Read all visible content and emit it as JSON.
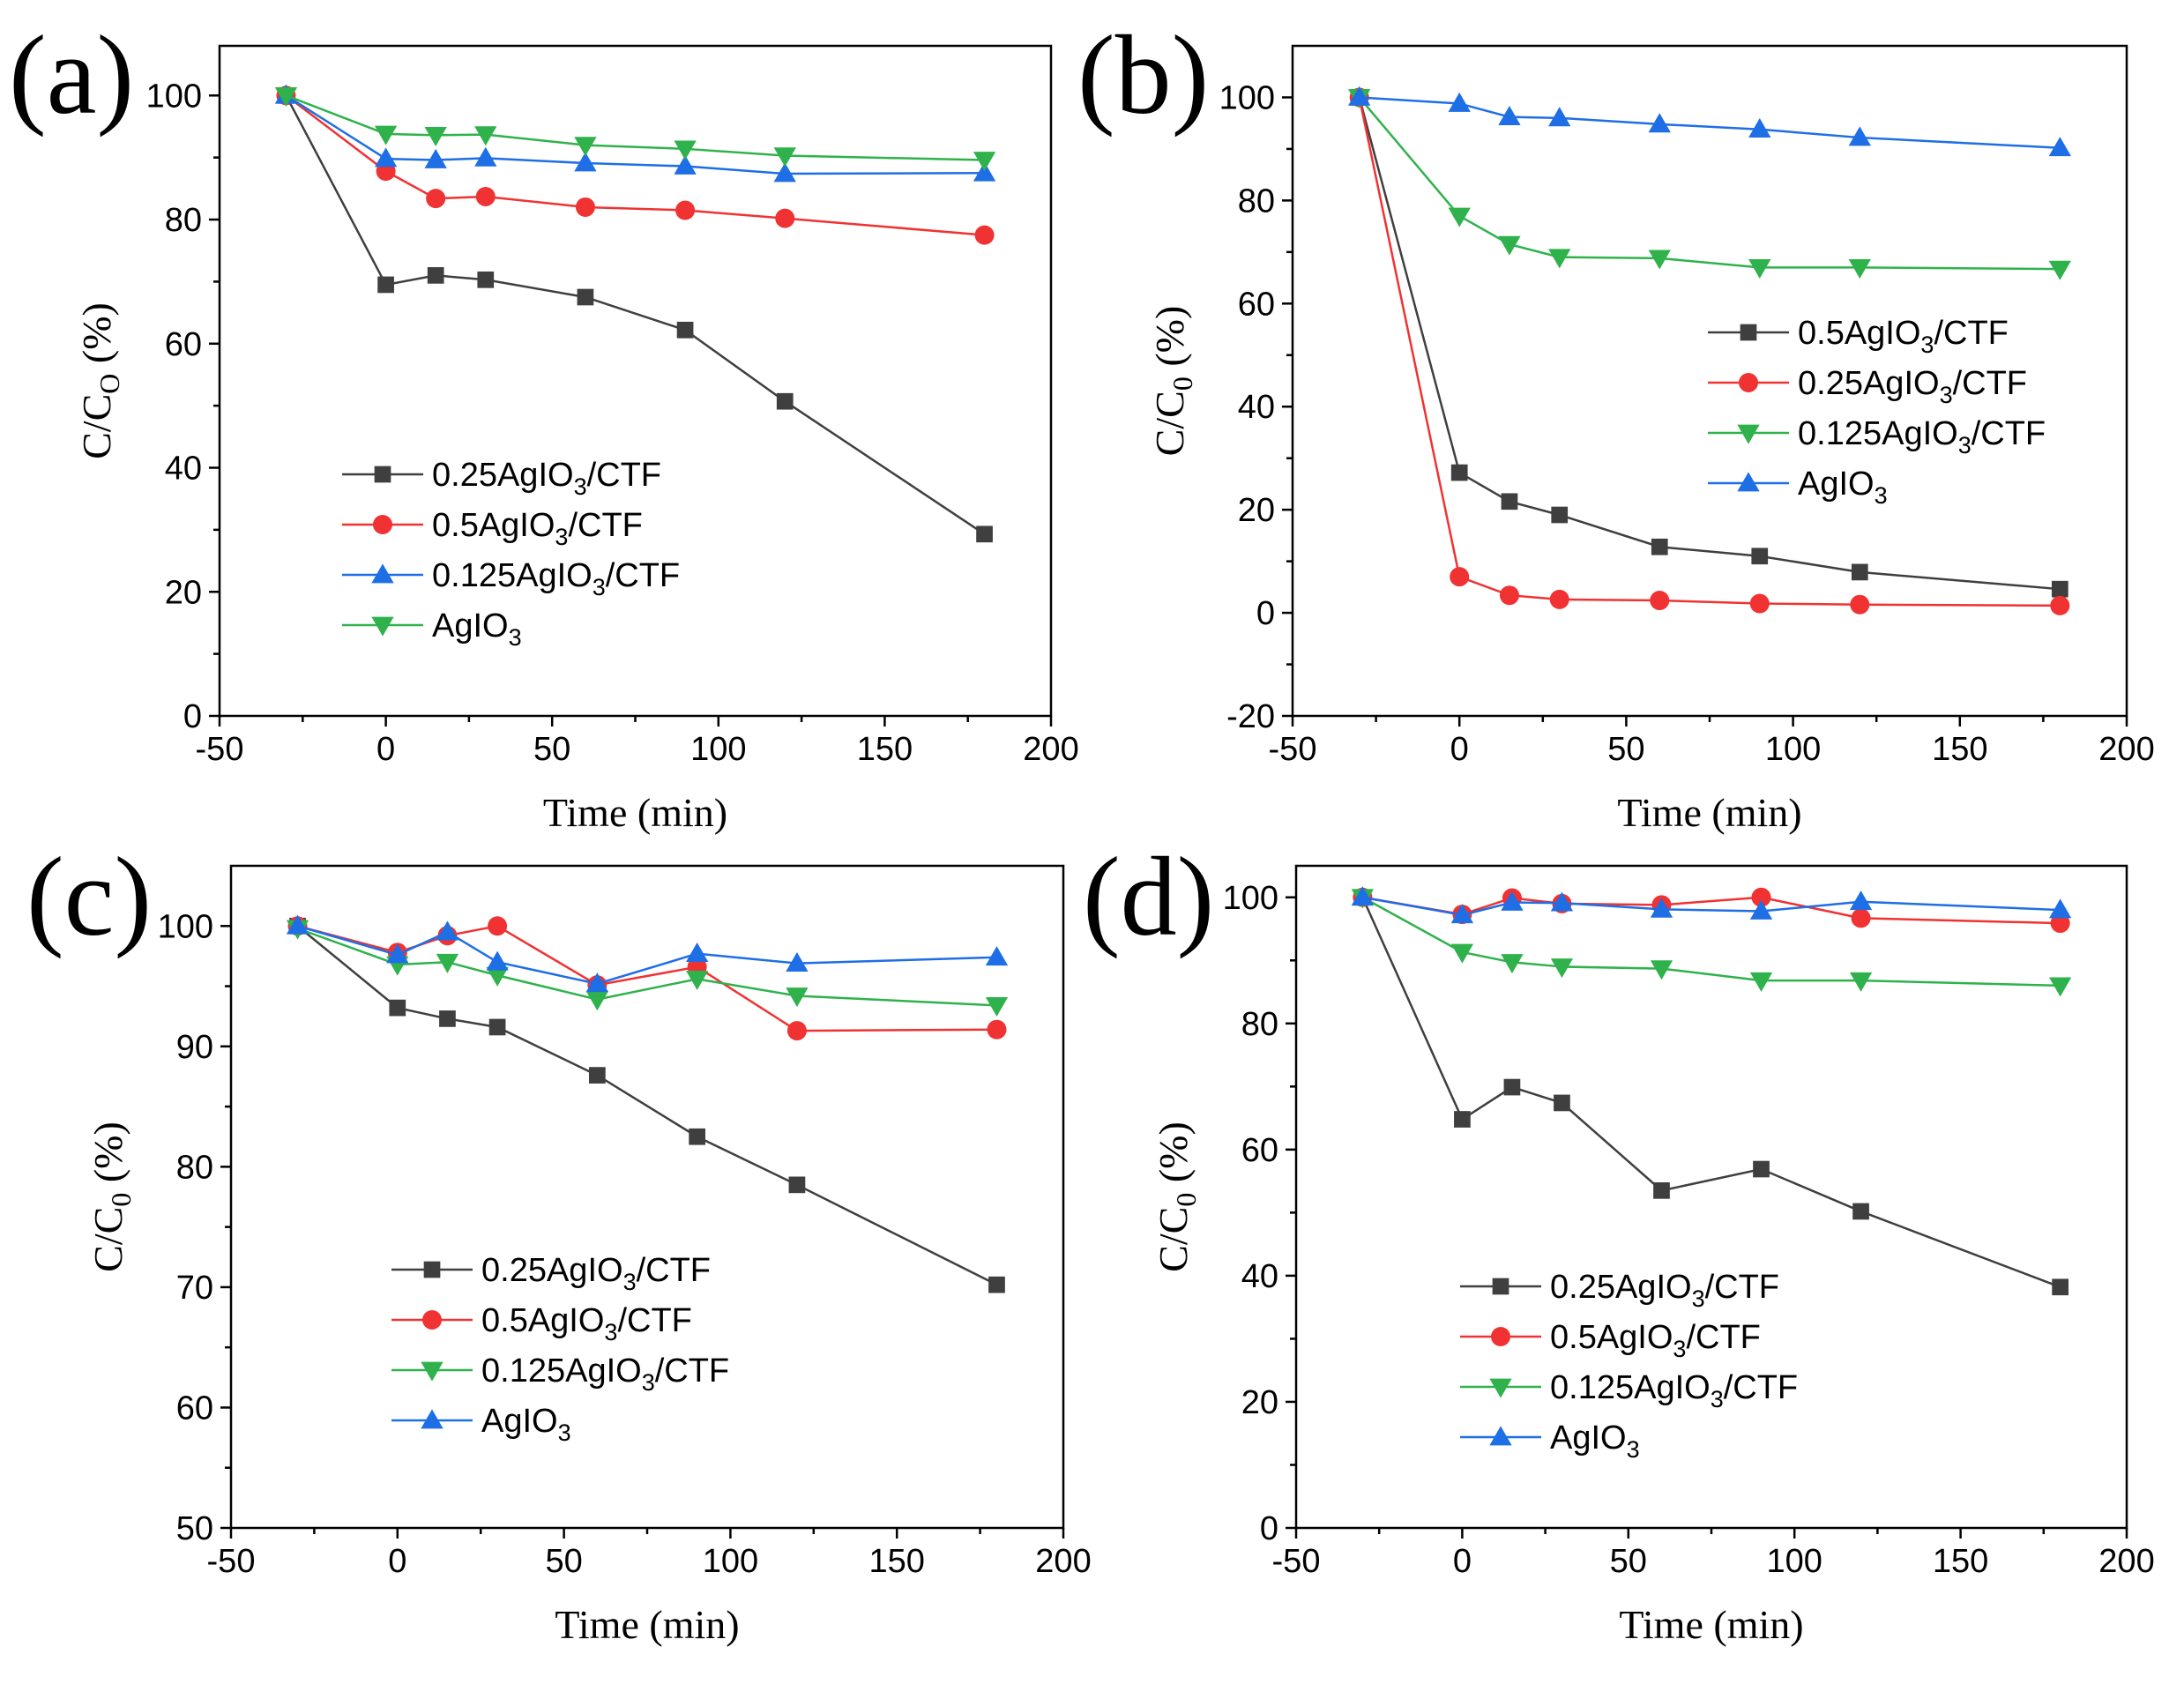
{
  "chart_data": [
    {
      "type": "line",
      "panel_label": "(a)",
      "xlabel": "Time (min)",
      "ylabel": {
        "main": "C/C",
        "sub": "O",
        "tail": " (%)"
      },
      "xlim": [
        -50,
        200
      ],
      "ylim": [
        0,
        108
      ],
      "xticks": [
        -50,
        0,
        50,
        100,
        150,
        200
      ],
      "xtick_labels": [
        "-50",
        "0",
        "50",
        "100",
        "150",
        "200"
      ],
      "yticks": [
        0,
        20,
        40,
        60,
        80,
        100
      ],
      "ytick_labels": [
        "0",
        "20",
        "40",
        "60",
        "80",
        "100"
      ],
      "x": [
        -30,
        0,
        15,
        30,
        60,
        90,
        120,
        180
      ],
      "legend_position": "lower-left",
      "series": [
        {
          "name": "0.25AgIO3/CTF",
          "label": {
            "pre": "0.25AgIO",
            "sub": "3",
            "post": "/CTF"
          },
          "color": "#3f3f3f",
          "marker": "square",
          "values": [
            100,
            69.5,
            71,
            70.3,
            67.5,
            62.2,
            50.7,
            29.3
          ]
        },
        {
          "name": "0.5AgIO3/CTF",
          "label": {
            "pre": "0.5AgIO",
            "sub": "3",
            "post": "/CTF"
          },
          "color": "#f03232",
          "marker": "circle",
          "values": [
            100,
            87.8,
            83.4,
            83.7,
            82,
            81.5,
            80.2,
            77.5
          ]
        },
        {
          "name": "0.125AgIO3/CTF",
          "label": {
            "pre": "0.125AgIO",
            "sub": "3",
            "post": "/CTF"
          },
          "color": "#1e6ee6",
          "marker": "triangle-up",
          "values": [
            100,
            89.8,
            89.6,
            89.9,
            89.1,
            88.6,
            87.4,
            87.5
          ]
        },
        {
          "name": "AgIO3",
          "label": {
            "pre": "AgIO",
            "sub": "3",
            "post": ""
          },
          "color": "#2fb24c",
          "marker": "triangle-down",
          "values": [
            100,
            93.8,
            93.6,
            93.7,
            92,
            91.4,
            90.3,
            89.6
          ]
        }
      ]
    },
    {
      "type": "line",
      "panel_label": "(b)",
      "xlabel": "Time (min)",
      "ylabel": {
        "main": "C/C",
        "sub": "0",
        "tail": " (%)"
      },
      "xlim": [
        -50,
        200
      ],
      "ylim": [
        -20,
        110
      ],
      "xticks": [
        -50,
        0,
        50,
        100,
        150,
        200
      ],
      "xtick_labels": [
        "-50",
        "0",
        "50",
        "100",
        "150",
        "200"
      ],
      "yticks": [
        -20,
        0,
        20,
        40,
        60,
        80,
        100
      ],
      "ytick_labels": [
        "-20",
        "0",
        "20",
        "40",
        "60",
        "80",
        "100"
      ],
      "x": [
        -30,
        0,
        15,
        30,
        60,
        90,
        120,
        180
      ],
      "legend_position": "center-right",
      "series": [
        {
          "name": "0.5AgIO3/CTF",
          "label": {
            "pre": "0.5AgIO",
            "sub": "3",
            "post": "/CTF"
          },
          "color": "#3f3f3f",
          "marker": "square",
          "values": [
            100,
            27.2,
            21.6,
            19,
            12.8,
            11,
            7.9,
            4.6
          ]
        },
        {
          "name": "0.25AgIO3/CTF",
          "label": {
            "pre": "0.25AgIO",
            "sub": "3",
            "post": "/CTF"
          },
          "color": "#f03232",
          "marker": "circle",
          "values": [
            100,
            7,
            3.4,
            2.6,
            2.4,
            1.8,
            1.6,
            1.4
          ]
        },
        {
          "name": "0.125AgIO3/CTF",
          "label": {
            "pre": "0.125AgIO",
            "sub": "3",
            "post": "/CTF"
          },
          "color": "#2fb24c",
          "marker": "triangle-down",
          "values": [
            100,
            77,
            71.5,
            69,
            68.8,
            67,
            67,
            66.7
          ]
        },
        {
          "name": "AgIO3",
          "label": {
            "pre": "AgIO",
            "sub": "3",
            "post": ""
          },
          "color": "#1e6ee6",
          "marker": "triangle-up",
          "values": [
            100,
            98.8,
            96.2,
            96,
            94.8,
            93.8,
            92.2,
            90.2
          ]
        }
      ]
    },
    {
      "type": "line",
      "panel_label": "(c)",
      "xlabel": "Time (min)",
      "ylabel": {
        "main": "C/C",
        "sub": "0",
        "tail": " (%)"
      },
      "xlim": [
        -50,
        200
      ],
      "ylim": [
        50,
        105
      ],
      "xticks": [
        -50,
        0,
        50,
        100,
        150,
        200
      ],
      "xtick_labels": [
        "-50",
        "0",
        "50",
        "100",
        "150",
        "200"
      ],
      "yticks": [
        50,
        60,
        70,
        80,
        90,
        100
      ],
      "ytick_labels": [
        "50",
        "60",
        "70",
        "80",
        "90",
        "100"
      ],
      "x": [
        -30,
        0,
        15,
        30,
        60,
        90,
        120,
        180
      ],
      "legend_position": "lower-left",
      "series": [
        {
          "name": "0.25AgIO3/CTF",
          "label": {
            "pre": "0.25AgIO",
            "sub": "3",
            "post": "/CTF"
          },
          "color": "#3f3f3f",
          "marker": "square",
          "values": [
            100,
            93.2,
            92.3,
            91.6,
            87.6,
            82.5,
            78.5,
            70.2
          ]
        },
        {
          "name": "0.5AgIO3/CTF",
          "label": {
            "pre": "0.5AgIO",
            "sub": "3",
            "post": "/CTF"
          },
          "color": "#f03232",
          "marker": "circle",
          "values": [
            100,
            97.8,
            99.2,
            100,
            95.1,
            96.6,
            91.3,
            91.4
          ]
        },
        {
          "name": "0.125AgIO3/CTF",
          "label": {
            "pre": "0.125AgIO",
            "sub": "3",
            "post": "/CTF"
          },
          "color": "#2fb24c",
          "marker": "triangle-down",
          "values": [
            99.8,
            96.8,
            97,
            95.9,
            93.9,
            95.6,
            94.2,
            93.4
          ]
        },
        {
          "name": "AgIO3",
          "label": {
            "pre": "AgIO",
            "sub": "3",
            "post": ""
          },
          "color": "#1e6ee6",
          "marker": "triangle-up",
          "values": [
            100,
            97.6,
            99.5,
            97,
            95.2,
            97.7,
            96.9,
            97.4
          ]
        }
      ]
    },
    {
      "type": "line",
      "panel_label": "(d)",
      "xlabel": "Time (min)",
      "ylabel": {
        "main": "C/C",
        "sub": "0",
        "tail": " (%)"
      },
      "xlim": [
        -50,
        200
      ],
      "ylim": [
        0,
        105
      ],
      "xticks": [
        -50,
        0,
        50,
        100,
        150,
        200
      ],
      "xtick_labels": [
        "-50",
        "0",
        "50",
        "100",
        "150",
        "200"
      ],
      "yticks": [
        0,
        20,
        40,
        60,
        80,
        100
      ],
      "ytick_labels": [
        "0",
        "20",
        "40",
        "60",
        "80",
        "100"
      ],
      "x": [
        -30,
        0,
        15,
        30,
        60,
        90,
        120,
        180
      ],
      "legend_position": "lower-left",
      "series": [
        {
          "name": "0.25AgIO3/CTF",
          "label": {
            "pre": "0.25AgIO",
            "sub": "3",
            "post": "/CTF"
          },
          "color": "#3f3f3f",
          "marker": "square",
          "values": [
            100,
            64.8,
            69.9,
            67.4,
            53.5,
            56.9,
            50.2,
            38.2
          ]
        },
        {
          "name": "0.5AgIO3/CTF",
          "label": {
            "pre": "0.5AgIO",
            "sub": "3",
            "post": "/CTF"
          },
          "color": "#f03232",
          "marker": "circle",
          "values": [
            100,
            97.3,
            99.9,
            99,
            98.8,
            100,
            96.7,
            95.9
          ]
        },
        {
          "name": "0.125AgIO3/CTF",
          "label": {
            "pre": "0.125AgIO",
            "sub": "3",
            "post": "/CTF"
          },
          "color": "#2fb24c",
          "marker": "triangle-down",
          "values": [
            100,
            91.3,
            89.7,
            89,
            88.7,
            86.8,
            86.8,
            86
          ]
        },
        {
          "name": "AgIO3",
          "label": {
            "pre": "AgIO",
            "sub": "3",
            "post": ""
          },
          "color": "#1e6ee6",
          "marker": "triangle-up",
          "values": [
            100,
            97.2,
            99.2,
            99.1,
            98.1,
            97.8,
            99.3,
            98
          ]
        }
      ]
    }
  ]
}
